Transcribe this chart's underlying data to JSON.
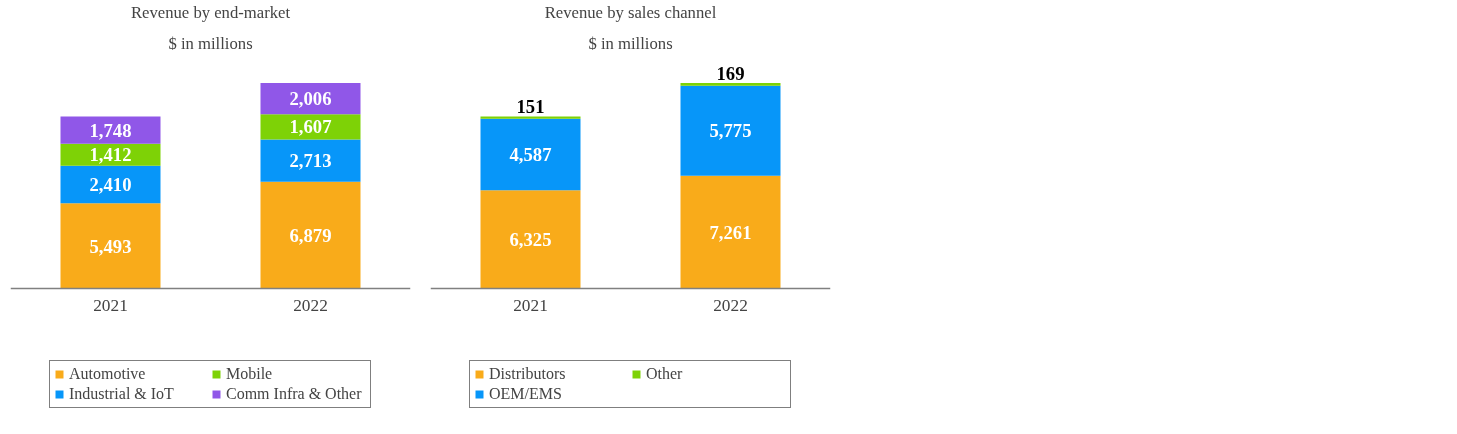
{
  "chart_data": [
    {
      "type": "bar",
      "title": "Revenue by end-market",
      "subtitle": "$ in millions",
      "categories": [
        "2021",
        "2022"
      ],
      "stacked": true,
      "legend": "bottom",
      "grid": false,
      "series": [
        {
          "name": "Automotive",
          "color": "#f9ab1a",
          "values": [
            5493,
            6879
          ],
          "value_labels": [
            "5,493",
            "6,879"
          ]
        },
        {
          "name": "Industrial & IoT",
          "color": "#0796f9",
          "values": [
            2410,
            2713
          ],
          "value_labels": [
            "2,410",
            "2,713"
          ]
        },
        {
          "name": "Mobile",
          "color": "#7ed206",
          "values": [
            1412,
            1607
          ],
          "value_labels": [
            "1,412",
            "1,607"
          ]
        },
        {
          "name": "Comm Infra & Other",
          "color": "#9057e8",
          "values": [
            1748,
            2006
          ],
          "value_labels": [
            "1,748",
            "2,006"
          ]
        }
      ]
    },
    {
      "type": "bar",
      "title": "Revenue by sales channel",
      "subtitle": "$ in millions",
      "categories": [
        "2021",
        "2022"
      ],
      "stacked": true,
      "legend": "bottom",
      "grid": false,
      "series": [
        {
          "name": "Distributors",
          "color": "#f9ab1a",
          "values": [
            6325,
            7261
          ],
          "value_labels": [
            "6,325",
            "7,261"
          ]
        },
        {
          "name": "OEM/EMS",
          "color": "#0796f9",
          "values": [
            4587,
            5775
          ],
          "value_labels": [
            "4,587",
            "5,775"
          ]
        },
        {
          "name": "Other",
          "color": "#7ed206",
          "values": [
            151,
            169
          ],
          "value_labels": [
            "151",
            "169"
          ]
        }
      ]
    }
  ]
}
